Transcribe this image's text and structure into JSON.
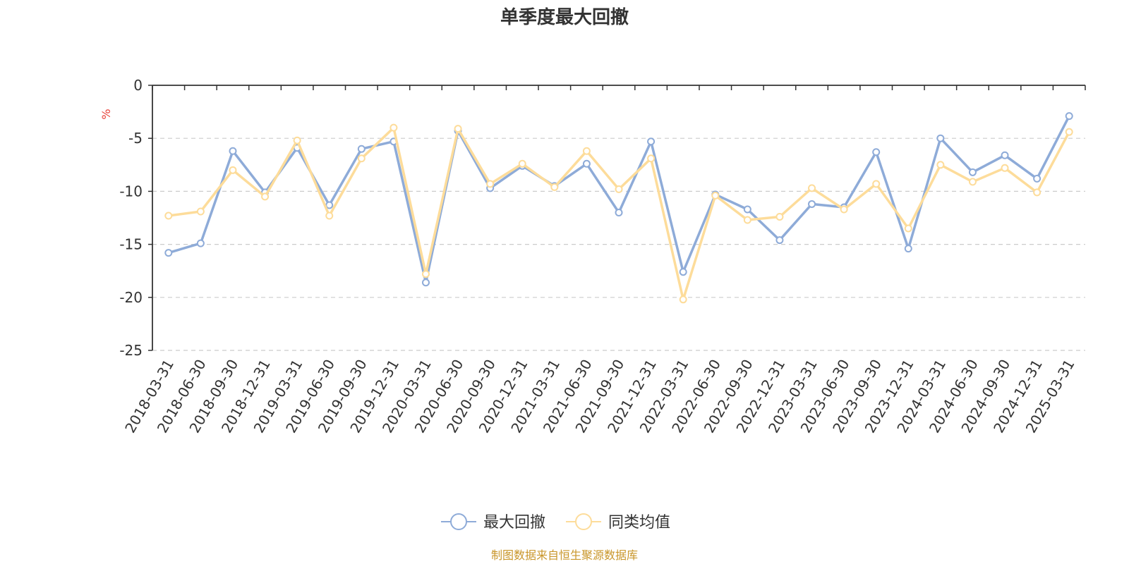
{
  "chart_data": {
    "type": "line",
    "title": "单季度最大回撤",
    "ylabel": "%",
    "xlabel": "",
    "ylim": [
      -25,
      0
    ],
    "yticks": [
      0,
      -5,
      -10,
      -15,
      -20,
      -25
    ],
    "ytick_labels": [
      "0",
      "-5",
      "-10",
      "-15",
      "-20",
      "-25"
    ],
    "grid": true,
    "legend_position": "bottom-center",
    "categories": [
      "2018-03-31",
      "2018-06-30",
      "2018-09-30",
      "2018-12-31",
      "2019-03-31",
      "2019-06-30",
      "2019-09-30",
      "2019-12-31",
      "2020-03-31",
      "2020-06-30",
      "2020-09-30",
      "2020-12-31",
      "2021-03-31",
      "2021-06-30",
      "2021-09-30",
      "2021-12-31",
      "2022-03-31",
      "2022-06-30",
      "2022-09-30",
      "2022-12-31",
      "2023-03-31",
      "2023-06-30",
      "2023-09-30",
      "2023-12-31",
      "2024-03-31",
      "2024-06-30",
      "2024-09-30",
      "2024-12-31",
      "2025-03-31"
    ],
    "series": [
      {
        "name": "最大回撤",
        "color": "#8eabd8",
        "values": [
          -15.8,
          -14.9,
          -6.2,
          -10.1,
          -5.9,
          -11.3,
          -6.0,
          -5.3,
          -18.6,
          -4.3,
          -9.7,
          -7.6,
          -9.5,
          -7.4,
          -12.0,
          -5.3,
          -17.6,
          -10.3,
          -11.7,
          -14.6,
          -11.2,
          -11.5,
          -6.3,
          -15.4,
          -5.0,
          -8.2,
          -6.6,
          -8.8,
          -2.9
        ]
      },
      {
        "name": "同类均值",
        "color": "#fddc9a",
        "values": [
          -12.3,
          -11.9,
          -8.0,
          -10.5,
          -5.2,
          -12.3,
          -6.9,
          -4.0,
          -17.8,
          -4.1,
          -9.3,
          -7.4,
          -9.6,
          -6.2,
          -9.8,
          -6.9,
          -20.2,
          -10.4,
          -12.7,
          -12.4,
          -9.7,
          -11.7,
          -9.3,
          -13.5,
          -7.5,
          -9.1,
          -7.8,
          -10.1,
          -4.4
        ]
      }
    ]
  },
  "source_text": "制图数据来自恒生聚源数据库",
  "colors": {
    "title": "#333333",
    "axis": "#333333",
    "grid": "#cccccc",
    "unit": "#e8423a",
    "source": "#c9962a"
  }
}
